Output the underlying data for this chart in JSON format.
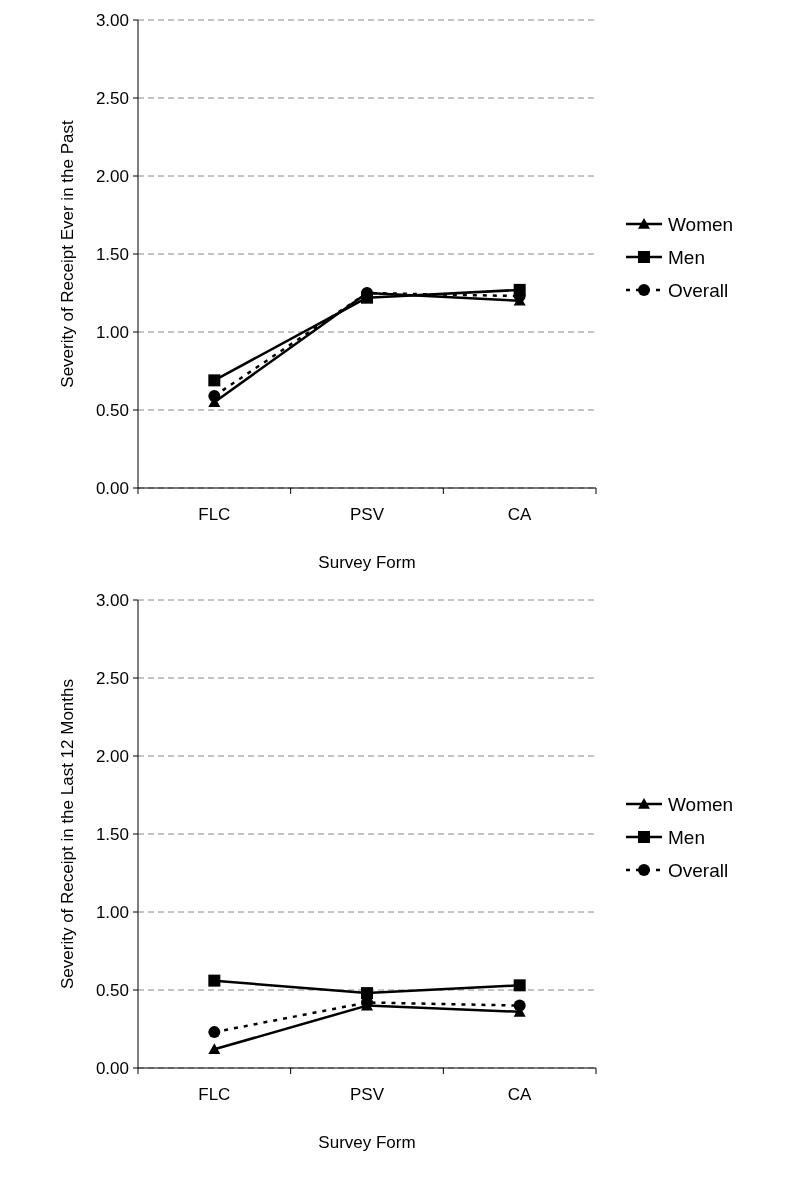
{
  "chart_data": [
    {
      "type": "line",
      "xlabel": "Survey Form",
      "ylabel": "Severity of Receipt Ever in the Past",
      "categories": [
        "FLC",
        "PSV",
        "CA"
      ],
      "ylim": [
        0,
        3
      ],
      "yticks": [
        {
          "value": 0,
          "label": "0.00"
        },
        {
          "value": 0.5,
          "label": "0.50"
        },
        {
          "value": 1,
          "label": "1.00"
        },
        {
          "value": 1.5,
          "label": "1.50"
        },
        {
          "value": 2,
          "label": "2.00"
        },
        {
          "value": 2.5,
          "label": "2.50"
        },
        {
          "value": 3,
          "label": "3.00"
        }
      ],
      "grid": "y",
      "legend": "right",
      "series": [
        {
          "name": "Women",
          "color": "#000000",
          "marker": "triangle",
          "line_style": "solid",
          "values": [
            0.55,
            1.25,
            1.2
          ]
        },
        {
          "name": "Men",
          "color": "#000000",
          "marker": "square",
          "line_style": "solid",
          "values": [
            0.69,
            1.22,
            1.27
          ]
        },
        {
          "name": "Overall",
          "color": "#000000",
          "marker": "circle",
          "line_style": "dashed",
          "values": [
            0.59,
            1.25,
            1.23
          ]
        }
      ]
    },
    {
      "type": "line",
      "xlabel": "Survey Form",
      "ylabel": "Severity of Receipt in the Last 12 Months",
      "categories": [
        "FLC",
        "PSV",
        "CA"
      ],
      "ylim": [
        0,
        3
      ],
      "yticks": [
        {
          "value": 0,
          "label": "0.00"
        },
        {
          "value": 0.5,
          "label": "0.50"
        },
        {
          "value": 1,
          "label": "1.00"
        },
        {
          "value": 1.5,
          "label": "1.50"
        },
        {
          "value": 2,
          "label": "2.00"
        },
        {
          "value": 2.5,
          "label": "2.50"
        },
        {
          "value": 3,
          "label": "3.00"
        }
      ],
      "grid": "y",
      "legend": "right",
      "series": [
        {
          "name": "Women",
          "color": "#000000",
          "marker": "triangle",
          "line_style": "solid",
          "values": [
            0.12,
            0.4,
            0.36
          ]
        },
        {
          "name": "Men",
          "color": "#000000",
          "marker": "square",
          "line_style": "solid",
          "values": [
            0.56,
            0.48,
            0.53
          ]
        },
        {
          "name": "Overall",
          "color": "#000000",
          "marker": "circle",
          "line_style": "dashed",
          "values": [
            0.23,
            0.42,
            0.4
          ]
        }
      ]
    }
  ]
}
